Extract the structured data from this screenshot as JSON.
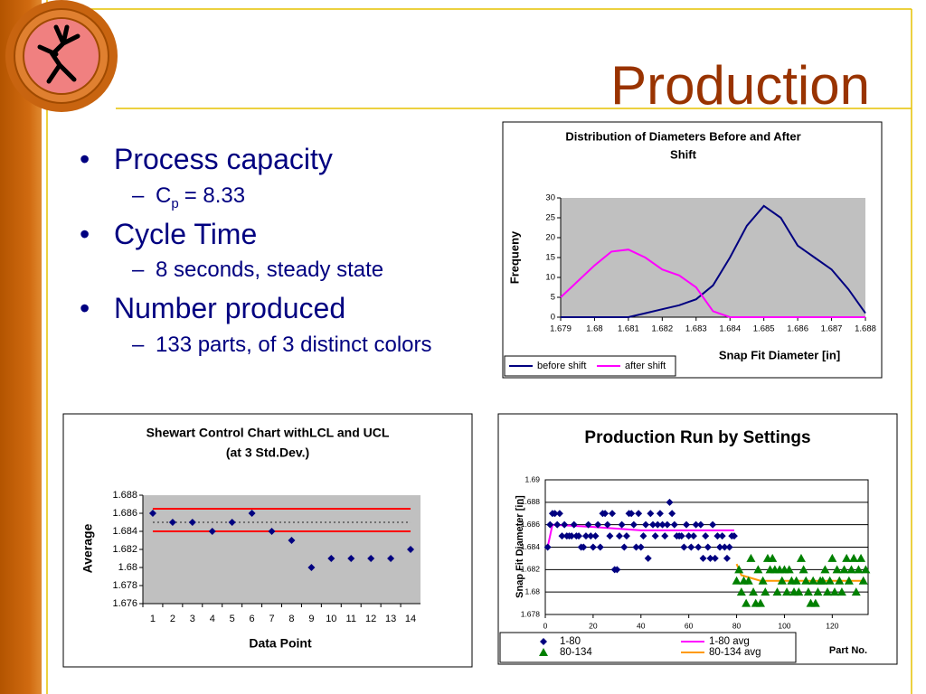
{
  "slide": {
    "title": "Production",
    "bullets": [
      {
        "text": "Process capacity",
        "sub": [
          "C",
          "p",
          "= 8.33"
        ]
      },
      {
        "text": "Cycle Time",
        "sub": [
          "8 seconds, steady state"
        ]
      },
      {
        "text": "Number produced",
        "sub": [
          "133 parts, of 3 distinct colors"
        ]
      }
    ]
  },
  "chart_data": [
    {
      "type": "line",
      "title": [
        "Distribution of Diameters Before and After",
        "Shift"
      ],
      "y_label": "Frequeny",
      "x_label": "Snap Fit Diameter [in]",
      "x": [
        1.679,
        1.6795,
        1.68,
        1.6805,
        1.681,
        1.6815,
        1.682,
        1.6825,
        1.683,
        1.6835,
        1.684,
        1.6845,
        1.685,
        1.6855,
        1.686,
        1.6865,
        1.687,
        1.6875,
        1.688
      ],
      "series": [
        {
          "name": "before shift",
          "color": "#000080",
          "values": [
            0,
            0,
            0,
            0,
            0,
            1,
            2,
            3,
            4.5,
            8,
            15,
            23,
            28,
            25,
            18,
            15,
            12,
            7,
            1
          ]
        },
        {
          "name": "after shift",
          "color": "#ff00ff",
          "values": [
            5,
            9,
            13,
            16.5,
            17,
            15,
            12,
            10.5,
            7.5,
            1.5,
            0,
            0,
            0,
            0,
            0,
            0,
            0,
            0,
            0
          ]
        }
      ],
      "xlim": [
        1.679,
        1.688
      ],
      "xticks": [
        1.679,
        1.68,
        1.681,
        1.682,
        1.683,
        1.684,
        1.685,
        1.686,
        1.687,
        1.688
      ],
      "ylim": [
        0,
        30
      ],
      "yticks": [
        0,
        5,
        10,
        15,
        20,
        25,
        30
      ],
      "plot_color": "#c0c0c0",
      "grid": false,
      "legend": "bottom-left"
    },
    {
      "type": "scatter",
      "title": [
        "Shewart Control Chart withLCL and UCL",
        "(at 3 Std.Dev.)"
      ],
      "y_label": "Average",
      "x_label": "Data Point",
      "categories": [
        1,
        2,
        3,
        4,
        5,
        6,
        7,
        8,
        9,
        10,
        11,
        12,
        13,
        14
      ],
      "values": [
        1.686,
        1.685,
        1.685,
        1.684,
        1.685,
        1.686,
        1.684,
        1.683,
        1.68,
        1.681,
        1.681,
        1.681,
        1.681,
        1.682
      ],
      "color": "#000080",
      "ucl": 1.6865,
      "lcl": 1.684,
      "center": 1.685,
      "limit_color": "#ff0000",
      "center_color": "#404040",
      "ylim": [
        1.676,
        1.688
      ],
      "yticks": [
        1.676,
        1.678,
        1.68,
        1.682,
        1.684,
        1.686,
        1.688
      ],
      "plot_color": "#c0c0c0",
      "grid": false
    },
    {
      "type": "scatter",
      "title": [
        "Production Run by Settings"
      ],
      "y_label": "Snap Fit Diameter [in]",
      "x_label": "Part No.",
      "series": [
        {
          "name": "1-80",
          "color": "#000080",
          "marker": "diamond",
          "x": [
            1,
            2,
            3,
            4,
            5,
            6,
            7,
            8,
            9,
            10,
            11,
            12,
            13,
            14,
            15,
            16,
            17,
            18,
            19,
            20,
            21,
            22,
            23,
            24,
            25,
            26,
            27,
            28,
            29,
            30,
            31,
            32,
            33,
            34,
            35,
            36,
            37,
            38,
            39,
            40,
            41,
            42,
            43,
            44,
            45,
            46,
            47,
            48,
            49,
            50,
            51,
            52,
            53,
            54,
            55,
            56,
            57,
            58,
            59,
            60,
            61,
            62,
            63,
            64,
            65,
            66,
            67,
            68,
            69,
            70,
            71,
            72,
            73,
            74,
            75,
            76,
            77,
            78,
            79
          ],
          "values": [
            1.684,
            1.686,
            1.687,
            1.687,
            1.686,
            1.687,
            1.685,
            1.686,
            1.685,
            1.685,
            1.685,
            1.686,
            1.685,
            1.685,
            1.684,
            1.684,
            1.685,
            1.686,
            1.685,
            1.684,
            1.685,
            1.686,
            1.684,
            1.687,
            1.687,
            1.686,
            1.685,
            1.687,
            1.682,
            1.682,
            1.685,
            1.686,
            1.684,
            1.685,
            1.687,
            1.687,
            1.686,
            1.684,
            1.687,
            1.684,
            1.685,
            1.686,
            1.683,
            1.687,
            1.686,
            1.685,
            1.686,
            1.687,
            1.686,
            1.685,
            1.686,
            1.688,
            1.687,
            1.686,
            1.685,
            1.685,
            1.685,
            1.684,
            1.686,
            1.685,
            1.684,
            1.685,
            1.686,
            1.684,
            1.686,
            1.683,
            1.685,
            1.684,
            1.683,
            1.686,
            1.683,
            1.685,
            1.684,
            1.685,
            1.684,
            1.683,
            1.684,
            1.685,
            1.685
          ]
        },
        {
          "name": "1-80 avg",
          "color": "#ff00ff",
          "marker": "line",
          "x": [
            1,
            3,
            20,
            40,
            60,
            79
          ],
          "values": [
            1.684,
            1.686,
            1.6858,
            1.6855,
            1.6855,
            1.6855
          ]
        },
        {
          "name": "80-134",
          "color": "#008000",
          "marker": "triangle",
          "x": [
            80,
            81,
            82,
            83,
            84,
            85,
            86,
            87,
            88,
            89,
            90,
            91,
            92,
            93,
            94,
            95,
            96,
            97,
            98,
            99,
            100,
            101,
            102,
            103,
            104,
            105,
            106,
            107,
            108,
            109,
            110,
            111,
            112,
            113,
            114,
            115,
            116,
            117,
            118,
            119,
            120,
            121,
            122,
            123,
            124,
            125,
            126,
            127,
            128,
            129,
            130,
            131,
            132,
            133,
            134
          ],
          "values": [
            1.681,
            1.682,
            1.68,
            1.681,
            1.679,
            1.681,
            1.683,
            1.68,
            1.679,
            1.682,
            1.679,
            1.681,
            1.68,
            1.683,
            1.682,
            1.683,
            1.682,
            1.68,
            1.682,
            1.681,
            1.682,
            1.68,
            1.682,
            1.681,
            1.68,
            1.681,
            1.68,
            1.683,
            1.682,
            1.681,
            1.68,
            1.679,
            1.681,
            1.679,
            1.68,
            1.681,
            1.681,
            1.682,
            1.68,
            1.681,
            1.683,
            1.68,
            1.682,
            1.681,
            1.68,
            1.682,
            1.683,
            1.681,
            1.682,
            1.683,
            1.68,
            1.682,
            1.683,
            1.681,
            1.682
          ]
        },
        {
          "name": "80-134 avg",
          "color": "#ff9900",
          "marker": "line",
          "x": [
            80,
            82,
            90,
            110,
            134
          ],
          "values": [
            1.6825,
            1.6815,
            1.681,
            1.681,
            1.681
          ]
        }
      ],
      "xlim": [
        0,
        135
      ],
      "xticks": [
        0,
        20,
        40,
        60,
        80,
        100,
        120
      ],
      "ylim": [
        1.678,
        1.69
      ],
      "yticks": [
        1.678,
        1.68,
        1.682,
        1.684,
        1.686,
        1.688,
        1.69
      ],
      "plot_color": "#ffffff",
      "grid": true,
      "legend": "bottom"
    }
  ]
}
